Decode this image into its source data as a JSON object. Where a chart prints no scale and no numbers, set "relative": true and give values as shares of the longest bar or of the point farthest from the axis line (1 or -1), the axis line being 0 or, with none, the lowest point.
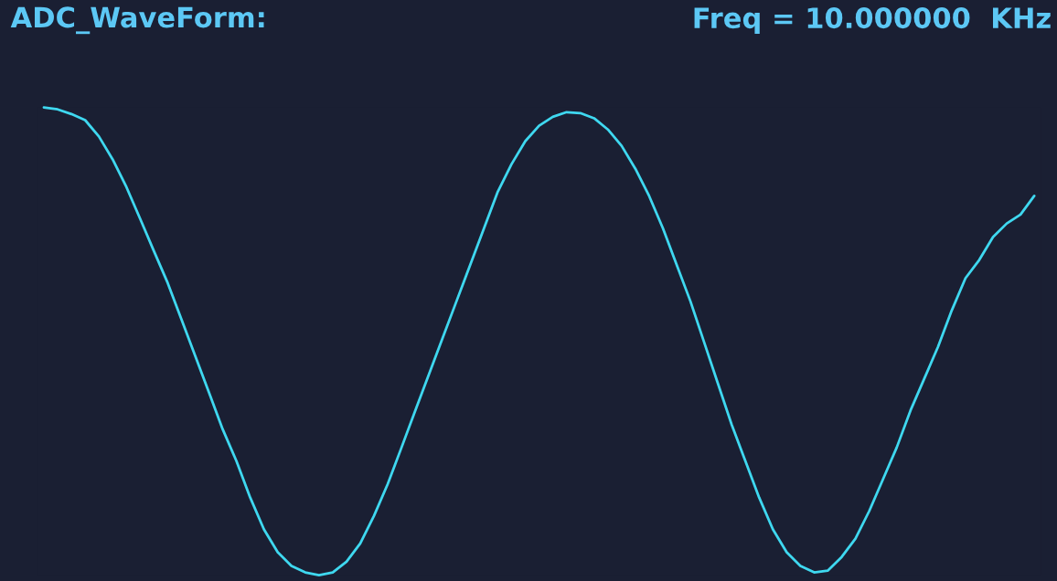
{
  "chart_data": {
    "type": "line",
    "title": "ADC_WaveForm:",
    "subtitle": "Freq = 10.000000  KHz",
    "relative": true,
    "categories": [
      null,
      null,
      null,
      null,
      null,
      null,
      null,
      null,
      null,
      null,
      null,
      null,
      null,
      null,
      null,
      null,
      null,
      null,
      null,
      null,
      null,
      null,
      null,
      null,
      null,
      null,
      null,
      null,
      null,
      null,
      null,
      null,
      null,
      null,
      null,
      null,
      null,
      null,
      null,
      null,
      null,
      null,
      null,
      null,
      null,
      null,
      null,
      null,
      null,
      null,
      null,
      null,
      null,
      null,
      null,
      null,
      null,
      null,
      null,
      null,
      null,
      null,
      null,
      null,
      null,
      null,
      null,
      null,
      null,
      null,
      null,
      null,
      null
    ],
    "series": [
      {
        "color": "#3fd8f0",
        "values": [
          1.0,
          0.996,
          0.986,
          0.973,
          0.938,
          0.889,
          0.83,
          0.762,
          0.693,
          0.625,
          0.547,
          0.469,
          0.391,
          0.312,
          0.244,
          0.166,
          0.098,
          0.049,
          0.02,
          0.006,
          0,
          0.006,
          0.029,
          0.068,
          0.127,
          0.195,
          0.273,
          0.352,
          0.43,
          0.508,
          0.586,
          0.664,
          0.742,
          0.82,
          0.879,
          0.928,
          0.961,
          0.98,
          0.99,
          0.988,
          0.977,
          0.953,
          0.918,
          0.869,
          0.811,
          0.742,
          0.664,
          0.586,
          0.498,
          0.41,
          0.322,
          0.244,
          0.166,
          0.098,
          0.049,
          0.02,
          0.006,
          0.01,
          0.039,
          0.078,
          0.137,
          0.205,
          0.273,
          0.352,
          0.42,
          0.488,
          0.566,
          0.635,
          0.674,
          0.723,
          0.752,
          0.771,
          0.811
        ]
      }
    ],
    "legend": false,
    "marker": "none",
    "line_style": "solid"
  }
}
